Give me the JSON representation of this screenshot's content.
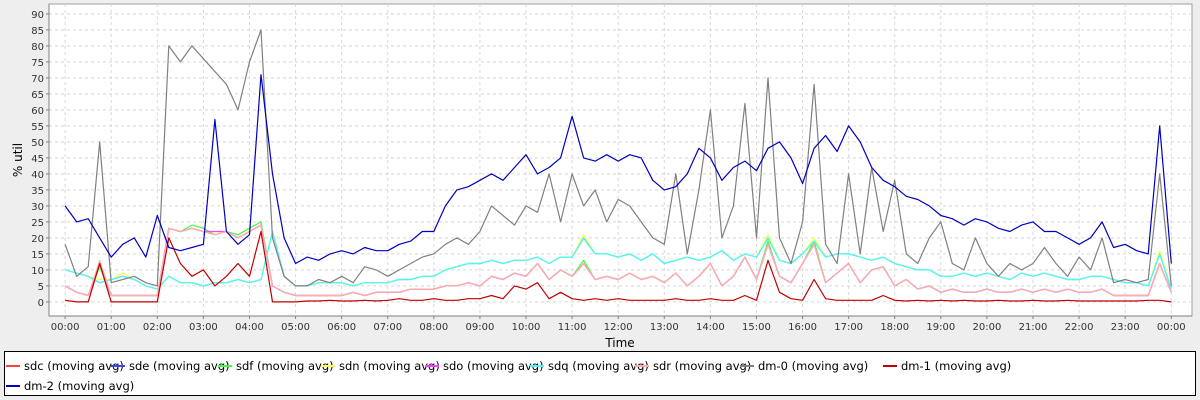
{
  "chart_data": {
    "type": "line",
    "title": "",
    "xlabel": "Time",
    "ylabel": "% util",
    "ylim": [
      -4.4,
      93.1
    ],
    "xlim_hours": [
      -0.35,
      24.45
    ],
    "grid": true,
    "legend_position": "bottom",
    "y_ticks": [
      "0",
      "5",
      "10",
      "15",
      "20",
      "25",
      "30",
      "35",
      "40",
      "45",
      "50",
      "55",
      "60",
      "65",
      "70",
      "75",
      "80",
      "85",
      "90"
    ],
    "x_ticks": [
      "00:00",
      "01:00",
      "02:00",
      "03:00",
      "04:00",
      "05:00",
      "06:00",
      "07:00",
      "08:00",
      "09:00",
      "10:00",
      "11:00",
      "12:00",
      "13:00",
      "14:00",
      "15:00",
      "16:00",
      "17:00",
      "18:00",
      "19:00",
      "20:00",
      "21:00",
      "22:00",
      "23:00",
      "00:00"
    ],
    "x_step_minutes": 15,
    "series": [
      {
        "name": "sdc (moving avg)",
        "color": "#ff4040",
        "values": [
          5,
          3,
          2,
          12,
          2,
          2,
          2,
          2,
          2,
          23,
          22,
          23,
          22,
          21,
          22,
          20,
          22,
          24,
          5,
          3,
          2,
          2,
          2,
          2,
          2,
          3,
          2,
          3,
          3,
          3,
          4,
          4,
          4,
          5,
          5,
          6,
          5,
          8,
          7,
          9,
          8,
          12,
          7,
          10,
          8,
          12,
          7,
          8,
          7,
          9,
          7,
          8,
          6,
          9,
          5,
          8,
          12,
          5,
          8,
          14,
          7,
          18,
          8,
          6,
          12,
          18,
          6,
          9,
          12,
          6,
          10,
          11,
          5,
          7,
          4,
          5,
          3,
          4,
          3,
          3,
          4,
          3,
          3,
          4,
          3,
          4,
          3,
          4,
          3,
          3,
          4,
          2,
          2,
          2,
          2,
          12,
          3
        ]
      },
      {
        "name": "sde (moving avg)",
        "color": "#4040ff",
        "values": [
          10,
          9,
          8,
          6,
          7,
          8,
          7,
          5,
          4,
          8,
          6,
          6,
          5,
          6,
          6,
          7,
          6,
          7,
          22,
          8,
          5,
          5,
          6,
          6,
          6,
          5,
          6,
          6,
          6,
          7,
          7,
          8,
          8,
          10,
          11,
          12,
          12,
          13,
          12,
          13,
          13,
          14,
          12,
          14,
          14,
          20,
          15,
          15,
          14,
          15,
          13,
          15,
          12,
          13,
          14,
          13,
          14,
          16,
          13,
          15,
          14,
          20,
          13,
          12,
          15,
          19,
          14,
          15,
          15,
          14,
          13,
          14,
          12,
          11,
          10,
          10,
          8,
          8,
          9,
          8,
          9,
          8,
          7,
          9,
          8,
          9,
          8,
          7,
          7,
          8,
          8,
          7,
          6,
          6,
          5,
          15,
          4
        ]
      },
      {
        "name": "sdf (moving avg)",
        "color": "#40ff40",
        "values": [
          5,
          3,
          2,
          11,
          2,
          2,
          2,
          2,
          2,
          23,
          22,
          24,
          23,
          21,
          22,
          21,
          23,
          25,
          5,
          3,
          2,
          2,
          2,
          2,
          2,
          3,
          2,
          3,
          3,
          3,
          4,
          4,
          4,
          5,
          5,
          6,
          5,
          8,
          7,
          9,
          8,
          12,
          7,
          10,
          8,
          13,
          7,
          8,
          7,
          9,
          7,
          8,
          6,
          9,
          5,
          8,
          12,
          5,
          8,
          14,
          7,
          19,
          8,
          6,
          12,
          19,
          6,
          9,
          12,
          6,
          10,
          11,
          5,
          7,
          4,
          5,
          3,
          4,
          3,
          3,
          4,
          3,
          3,
          4,
          3,
          4,
          3,
          4,
          3,
          3,
          4,
          2,
          2,
          2,
          2,
          12,
          3
        ]
      },
      {
        "name": "sdn (moving avg)",
        "color": "#ffff40",
        "values": [
          10,
          9,
          8,
          7,
          7,
          9,
          7,
          5,
          4,
          8,
          6,
          6,
          5,
          6,
          6,
          7,
          6,
          7,
          22,
          8,
          5,
          5,
          6,
          6,
          6,
          5,
          6,
          6,
          6,
          7,
          7,
          8,
          8,
          10,
          11,
          12,
          12,
          13,
          12,
          13,
          13,
          14,
          12,
          14,
          14,
          21,
          15,
          15,
          14,
          15,
          13,
          15,
          12,
          13,
          14,
          13,
          14,
          16,
          13,
          15,
          14,
          21,
          13,
          12,
          15,
          20,
          14,
          15,
          15,
          14,
          13,
          14,
          12,
          11,
          10,
          10,
          8,
          8,
          9,
          8,
          9,
          8,
          7,
          9,
          8,
          9,
          8,
          7,
          7,
          8,
          8,
          7,
          6,
          6,
          5,
          16,
          4
        ]
      },
      {
        "name": "sdo (moving avg)",
        "color": "#ff40ff",
        "values": [
          5,
          3,
          2,
          12,
          2,
          2,
          2,
          2,
          2,
          23,
          22,
          23,
          22,
          22,
          22,
          20,
          22,
          24,
          5,
          3,
          2,
          2,
          2,
          2,
          2,
          3,
          2,
          3,
          3,
          3,
          4,
          4,
          4,
          5,
          5,
          6,
          5,
          8,
          7,
          9,
          8,
          12,
          7,
          10,
          8,
          12,
          7,
          8,
          7,
          9,
          7,
          8,
          6,
          9,
          5,
          8,
          12,
          5,
          8,
          14,
          7,
          18,
          8,
          6,
          12,
          18,
          6,
          9,
          12,
          6,
          10,
          11,
          5,
          7,
          4,
          5,
          3,
          4,
          3,
          3,
          4,
          3,
          3,
          4,
          3,
          4,
          3,
          4,
          3,
          3,
          4,
          2,
          2,
          2,
          2,
          12,
          3
        ]
      },
      {
        "name": "sdq (moving avg)",
        "color": "#40ffff",
        "values": [
          10,
          9,
          8,
          6,
          7,
          8,
          7,
          5,
          4,
          8,
          6,
          6,
          5,
          6,
          6,
          7,
          6,
          7,
          22,
          8,
          5,
          5,
          6,
          6,
          6,
          5,
          6,
          6,
          6,
          7,
          7,
          8,
          8,
          10,
          11,
          12,
          12,
          13,
          12,
          13,
          13,
          14,
          12,
          14,
          14,
          20,
          15,
          15,
          14,
          15,
          13,
          15,
          12,
          13,
          14,
          13,
          14,
          16,
          13,
          15,
          14,
          20,
          13,
          12,
          15,
          19,
          14,
          15,
          15,
          14,
          13,
          14,
          12,
          11,
          10,
          10,
          8,
          8,
          9,
          8,
          9,
          8,
          7,
          9,
          8,
          9,
          8,
          7,
          7,
          8,
          8,
          7,
          6,
          6,
          5,
          15,
          4
        ]
      },
      {
        "name": "sdr (moving avg)",
        "color": "#ffafaf",
        "values": [
          5,
          3,
          2,
          13,
          2,
          2,
          2,
          2,
          2,
          23,
          22,
          23,
          22,
          21,
          22,
          20,
          22,
          24,
          5,
          3,
          2,
          2,
          2,
          2,
          2,
          3,
          2,
          3,
          3,
          3,
          4,
          4,
          4,
          5,
          5,
          6,
          5,
          8,
          7,
          9,
          8,
          12,
          7,
          10,
          8,
          12,
          7,
          8,
          7,
          9,
          7,
          8,
          6,
          9,
          5,
          8,
          12,
          5,
          8,
          14,
          7,
          18,
          8,
          6,
          12,
          18,
          6,
          9,
          12,
          6,
          10,
          11,
          5,
          7,
          4,
          5,
          3,
          4,
          3,
          3,
          4,
          3,
          3,
          4,
          3,
          4,
          3,
          4,
          3,
          3,
          4,
          2,
          2,
          2,
          2,
          12,
          3
        ]
      },
      {
        "name": "dm-0 (moving avg)",
        "color": "#808080",
        "values": [
          18,
          8,
          11,
          50,
          6,
          7,
          8,
          6,
          5,
          80,
          75,
          80,
          76,
          72,
          68,
          60,
          75,
          85,
          20,
          8,
          5,
          5,
          7,
          6,
          8,
          6,
          11,
          10,
          8,
          10,
          12,
          14,
          15,
          18,
          20,
          18,
          22,
          30,
          27,
          24,
          30,
          28,
          40,
          25,
          40,
          30,
          35,
          25,
          32,
          30,
          25,
          20,
          18,
          40,
          15,
          35,
          60,
          20,
          30,
          62,
          20,
          70,
          20,
          12,
          25,
          68,
          18,
          12,
          40,
          15,
          42,
          22,
          38,
          15,
          12,
          20,
          25,
          12,
          10,
          20,
          12,
          8,
          12,
          10,
          12,
          17,
          12,
          8,
          14,
          10,
          20,
          6,
          7,
          6,
          7,
          40,
          5
        ]
      },
      {
        "name": "dm-1 (moving avg)",
        "color": "#c00000",
        "values": [
          0.5,
          0,
          0,
          12,
          0,
          0,
          0,
          0,
          0,
          20,
          12,
          8,
          10,
          5,
          8,
          12,
          8,
          22,
          0,
          0,
          0,
          0.3,
          0.3,
          0.5,
          0.3,
          0.3,
          0.5,
          0.3,
          0.5,
          1,
          0.5,
          0.5,
          1,
          0.5,
          0.5,
          1,
          1,
          2,
          1,
          5,
          4,
          6,
          1,
          3,
          1,
          0.5,
          1,
          0.5,
          1,
          0.5,
          0.5,
          0.5,
          0.5,
          1,
          0.5,
          0.5,
          1,
          0.5,
          0.5,
          2,
          0.5,
          13,
          3,
          1,
          0.5,
          7,
          1,
          0.5,
          0.5,
          0.5,
          0.5,
          2,
          0.5,
          0.3,
          0.5,
          0.3,
          0.5,
          0.3,
          0.5,
          0.3,
          0.3,
          0.5,
          0.3,
          0.3,
          0.5,
          0.3,
          0.3,
          0.5,
          0.3,
          0.3,
          0.3,
          0.3,
          0.3,
          0.3,
          0.5,
          0.5,
          0
        ]
      },
      {
        "name": "dm-2 (moving avg)",
        "color": "#0000c0",
        "values": [
          30,
          25,
          26,
          20,
          14,
          18,
          20,
          14,
          27,
          17,
          16,
          17,
          18,
          57,
          22,
          18,
          21,
          71,
          40,
          20,
          12,
          14,
          13,
          15,
          16,
          15,
          17,
          16,
          16,
          18,
          19,
          22,
          22,
          30,
          35,
          36,
          38,
          40,
          38,
          42,
          46,
          40,
          42,
          45,
          58,
          45,
          44,
          46,
          44,
          46,
          45,
          38,
          35,
          36,
          40,
          48,
          45,
          38,
          42,
          44,
          41,
          48,
          50,
          45,
          37,
          48,
          52,
          47,
          55,
          50,
          42,
          38,
          36,
          33,
          32,
          30,
          27,
          26,
          24,
          26,
          25,
          23,
          22,
          24,
          25,
          22,
          22,
          20,
          18,
          20,
          25,
          17,
          18,
          16,
          15,
          55,
          12
        ]
      }
    ]
  }
}
